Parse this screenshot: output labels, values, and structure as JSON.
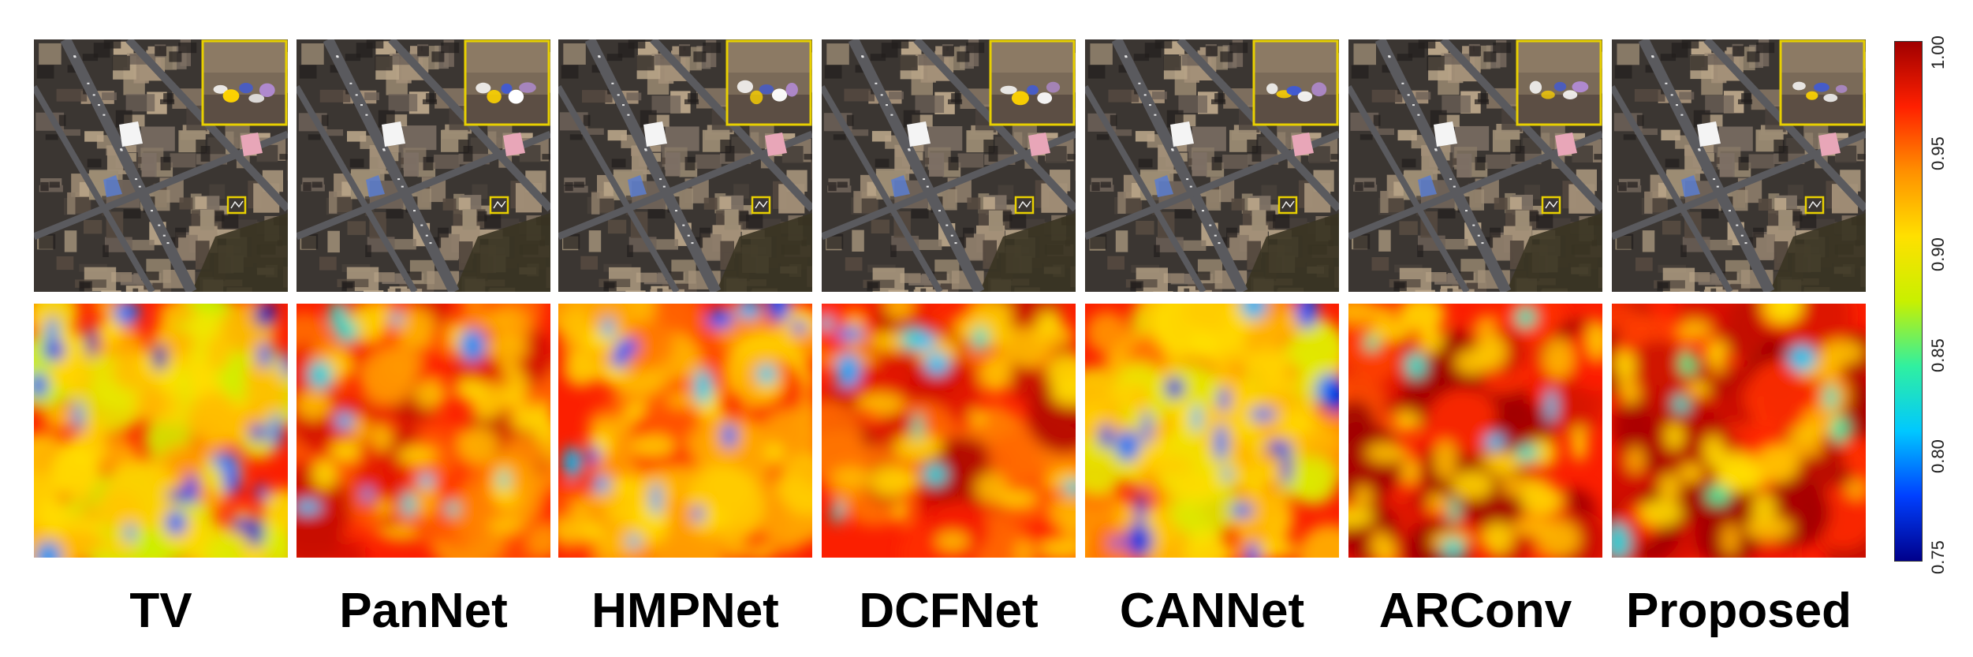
{
  "methods": [
    {
      "label": "TV",
      "seed": 11,
      "quality": 0.55,
      "inset_seed": 3
    },
    {
      "label": "PanNet",
      "seed": 23,
      "quality": 0.8,
      "inset_seed": 5
    },
    {
      "label": "HMPNet",
      "seed": 37,
      "quality": 0.7,
      "inset_seed": 7
    },
    {
      "label": "DCFNet",
      "seed": 41,
      "quality": 0.82,
      "inset_seed": 9
    },
    {
      "label": "CANNet",
      "seed": 53,
      "quality": 0.6,
      "inset_seed": 11
    },
    {
      "label": "ARConv",
      "seed": 67,
      "quality": 0.9,
      "inset_seed": 13
    },
    {
      "label": "Proposed",
      "seed": 79,
      "quality": 0.92,
      "inset_seed": 15
    }
  ],
  "colorbar": {
    "ticks": [
      "1.00",
      "0.95",
      "0.90",
      "0.85",
      "0.80",
      "0.75"
    ],
    "min": 0.75,
    "max": 1.0,
    "colormap": [
      "#00008b",
      "#0040ff",
      "#00c8ff",
      "#30f0a0",
      "#c8f000",
      "#ffe000",
      "#ff9000",
      "#ff2000",
      "#a00000"
    ]
  },
  "colors": {
    "zoom_box": "#e8d000",
    "road": "#5a5a5e",
    "building_palette": [
      "#8a7a68",
      "#6e6258",
      "#a39078",
      "#564a40",
      "#b8a488",
      "#7d7064",
      "#4a423c",
      "#9c8c74"
    ],
    "highlight_white": "#f4f4f4",
    "highlight_pink": "#e8a6b8",
    "highlight_blue": "#5a7ccf",
    "vegetation": "#3a3422"
  }
}
